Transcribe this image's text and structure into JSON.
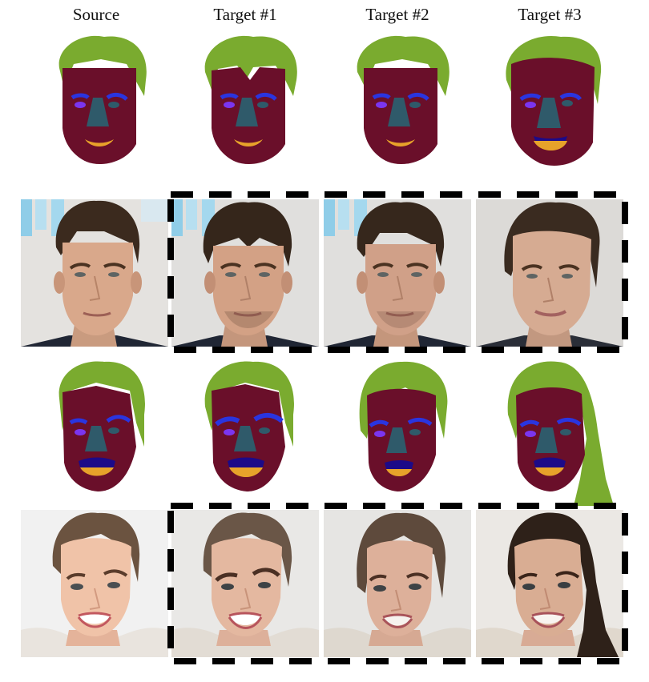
{
  "headers": [
    "Source",
    "Target #1",
    "Target #2",
    "Target #3"
  ],
  "colors": {
    "skin": "#6a0f2a",
    "hair": "#7aab2f",
    "nose": "#2f5a6a",
    "brow": "#2a35e0",
    "eye": "#7b35f0",
    "upper_lip": "#1c0a88",
    "lower_lip": "#e7a22a",
    "frame_dash": "#000000"
  }
}
